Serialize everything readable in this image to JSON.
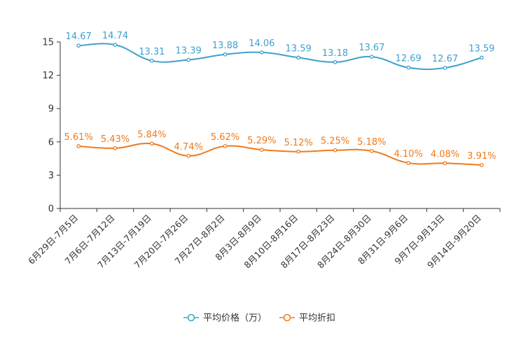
{
  "chart_data": {
    "type": "line",
    "title": "",
    "xlabel": "",
    "ylabel": "",
    "ylim": [
      0,
      15
    ],
    "yticks": [
      0,
      3,
      6,
      9,
      12,
      15
    ],
    "grid": false,
    "legend_position": "bottom-center",
    "categories": [
      "6月29日-7月5日",
      "7月6日-7月12日",
      "7月13日-7月19日",
      "7月20日-7月26日",
      "7月27日-8月2日",
      "8月3日-8月9日",
      "8月10日-8月16日",
      "8月17日-8月23日",
      "8月24日-8月30日",
      "8月31日-9月6日",
      "9月7日-9月13日",
      "9月14日-9月20日"
    ],
    "series": [
      {
        "name": "平均价格（万）",
        "color": "#3fa0cf",
        "values": [
          14.67,
          14.74,
          13.31,
          13.39,
          13.88,
          14.06,
          13.59,
          13.18,
          13.67,
          12.69,
          12.67,
          13.59
        ],
        "labels": [
          "14.67",
          "14.74",
          "13.31",
          "13.39",
          "13.88",
          "14.06",
          "13.59",
          "13.18",
          "13.67",
          "12.69",
          "12.67",
          "13.59"
        ]
      },
      {
        "name": "平均折扣",
        "color": "#f07a1a",
        "values": [
          5.61,
          5.43,
          5.84,
          4.74,
          5.62,
          5.29,
          5.12,
          5.25,
          5.18,
          4.1,
          4.08,
          3.91
        ],
        "labels": [
          "5.61%",
          "5.43%",
          "5.84%",
          "4.74%",
          "5.62%",
          "5.29%",
          "5.12%",
          "5.25%",
          "5.18%",
          "4.10%",
          "4.08%",
          "3.91%"
        ]
      }
    ]
  }
}
